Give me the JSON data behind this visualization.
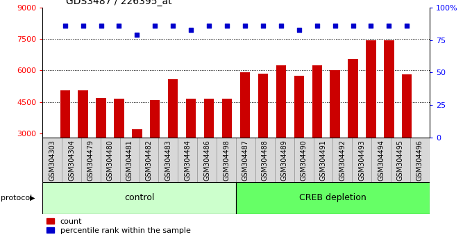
{
  "title": "GDS3487 / 226395_at",
  "categories": [
    "GSM304303",
    "GSM304304",
    "GSM304479",
    "GSM304480",
    "GSM304481",
    "GSM304482",
    "GSM304483",
    "GSM304484",
    "GSM304486",
    "GSM304498",
    "GSM304487",
    "GSM304488",
    "GSM304489",
    "GSM304490",
    "GSM304491",
    "GSM304492",
    "GSM304493",
    "GSM304494",
    "GSM304495",
    "GSM304496"
  ],
  "bar_values": [
    5050,
    5050,
    4700,
    4650,
    3200,
    4600,
    5600,
    4650,
    4650,
    4650,
    5900,
    5850,
    6250,
    5750,
    6250,
    6000,
    6550,
    7450,
    7450,
    5800
  ],
  "percentile_values": [
    86,
    86,
    86,
    86,
    79,
    86,
    86,
    83,
    86,
    86,
    86,
    86,
    86,
    83,
    86,
    86,
    86,
    86,
    86,
    86
  ],
  "n_control": 10,
  "n_creb": 10,
  "bar_color": "#cc0000",
  "percentile_color": "#0000cc",
  "ylim_left": [
    2800,
    9000
  ],
  "ylim_right": [
    0,
    100
  ],
  "yticks_left": [
    3000,
    4500,
    6000,
    7500,
    9000
  ],
  "yticks_right": [
    0,
    25,
    50,
    75,
    100
  ],
  "grid_values": [
    4500,
    6000,
    7500
  ],
  "control_color": "#ccffcc",
  "creb_color": "#66ff66",
  "label_bg_color": "#d8d8d8",
  "legend_count_label": "count",
  "legend_percentile_label": "percentile rank within the sample",
  "protocol_label": "protocol",
  "control_label": "control",
  "creb_label": "CREB depletion",
  "title_fontsize": 10,
  "label_fontsize": 7,
  "tick_fontsize": 8,
  "bar_width": 0.55
}
